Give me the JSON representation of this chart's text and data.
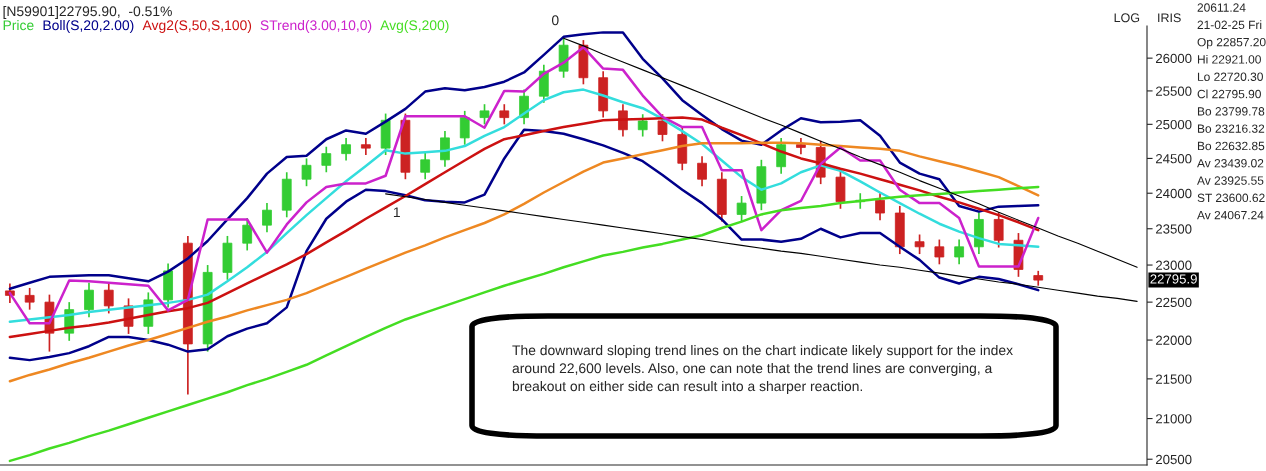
{
  "chart_data": {
    "type": "candlestick",
    "title": "[N59901]22795.90,  -0.51%",
    "log": "y",
    "grid": false,
    "tick_labels": "y",
    "categories": [
      null,
      null,
      null,
      null,
      null,
      null,
      null,
      null,
      null,
      null,
      null,
      null,
      null,
      null,
      null,
      null,
      null,
      null,
      null,
      null,
      null,
      null,
      null,
      null,
      null,
      null,
      null,
      null,
      null,
      null,
      null,
      null,
      null,
      null,
      null,
      null,
      null,
      null,
      null,
      null,
      null,
      null,
      null,
      null,
      null,
      null,
      null,
      null,
      null,
      null,
      null,
      null,
      null,
      null,
      null,
      null,
      null,
      null
    ],
    "ylim": [
      20430,
      26500
    ],
    "yticks": [
      20500,
      21000,
      21500,
      22000,
      22500,
      23000,
      23500,
      24000,
      24500,
      25000,
      25500,
      26000
    ],
    "series": [
      {
        "name": "Price",
        "color": "#33cc33",
        "ohlc": [
          [
            22650,
            22750,
            22490,
            22590
          ],
          [
            22590,
            22690,
            22400,
            22500
          ],
          [
            22500,
            22600,
            21850,
            22090
          ],
          [
            22090,
            22500,
            21990,
            22400
          ],
          [
            22400,
            22760,
            22300,
            22660
          ],
          [
            22660,
            22760,
            22350,
            22450
          ],
          [
            22450,
            22550,
            22080,
            22180
          ],
          [
            22180,
            22630,
            22080,
            22530
          ],
          [
            22530,
            23020,
            22430,
            22920
          ],
          [
            23300,
            23400,
            21300,
            21950
          ],
          [
            21950,
            23000,
            21850,
            22900
          ],
          [
            22900,
            23400,
            22800,
            23300
          ],
          [
            23300,
            23650,
            23200,
            23550
          ],
          [
            23550,
            23860,
            23450,
            23760
          ],
          [
            23760,
            24300,
            23660,
            24200
          ],
          [
            24200,
            24500,
            24100,
            24400
          ],
          [
            24400,
            24670,
            24300,
            24570
          ],
          [
            24570,
            24800,
            24470,
            24700
          ],
          [
            24700,
            24800,
            24550,
            24650
          ],
          [
            24650,
            25160,
            24550,
            25060
          ],
          [
            25060,
            25160,
            24200,
            24300
          ],
          [
            24300,
            24580,
            24200,
            24480
          ],
          [
            24480,
            24900,
            24380,
            24800
          ],
          [
            24800,
            25200,
            24700,
            25100
          ],
          [
            25100,
            25300,
            25000,
            25200
          ],
          [
            25200,
            25300,
            25000,
            25100
          ],
          [
            25100,
            25520,
            25000,
            25420
          ],
          [
            25420,
            25900,
            25320,
            25800
          ],
          [
            25800,
            26300,
            25700,
            26200
          ],
          [
            26200,
            26280,
            25600,
            25700
          ],
          [
            25700,
            25800,
            25100,
            25200
          ],
          [
            25200,
            25300,
            24820,
            24920
          ],
          [
            24920,
            25150,
            24820,
            25050
          ],
          [
            25050,
            25150,
            24750,
            24850
          ],
          [
            24850,
            24950,
            24330,
            24430
          ],
          [
            24430,
            24530,
            24100,
            24200
          ],
          [
            24200,
            24300,
            23600,
            23700
          ],
          [
            23700,
            23960,
            23600,
            23860
          ],
          [
            23860,
            24480,
            23760,
            24380
          ],
          [
            24380,
            24800,
            24280,
            24700
          ],
          [
            24700,
            24800,
            24560,
            24660
          ],
          [
            24660,
            24760,
            24130,
            24230
          ],
          [
            24230,
            24330,
            23780,
            23880
          ],
          [
            23880,
            24000,
            23780,
            23900
          ],
          [
            23900,
            24000,
            23620,
            23720
          ],
          [
            23720,
            23820,
            23150,
            23250
          ],
          [
            23320,
            23420,
            23150,
            23250
          ],
          [
            23250,
            23350,
            23010,
            23110
          ],
          [
            23110,
            23350,
            23010,
            23250
          ],
          [
            23250,
            23730,
            23150,
            23630
          ],
          [
            23630,
            23730,
            23240,
            23340
          ],
          [
            23340,
            23440,
            22840,
            22940
          ],
          [
            22857.2,
            22921,
            22720.3,
            22795.9
          ],
          null,
          null,
          null,
          null,
          null
        ],
        "colors": [
          "#cc2222",
          "#cc2222",
          "#cc2222",
          "#33cc33",
          "#33cc33",
          "#cc2222",
          "#cc2222",
          "#33cc33",
          "#33cc33",
          "#cc2222",
          "#33cc33",
          "#33cc33",
          "#33cc33",
          "#33cc33",
          "#33cc33",
          "#33cc33",
          "#33cc33",
          "#33cc33",
          "#cc2222",
          "#33cc33",
          "#cc2222",
          "#33cc33",
          "#33cc33",
          "#33cc33",
          "#33cc33",
          "#cc2222",
          "#33cc33",
          "#33cc33",
          "#33cc33",
          "#cc2222",
          "#cc2222",
          "#cc2222",
          "#33cc33",
          "#cc2222",
          "#cc2222",
          "#cc2222",
          "#cc2222",
          "#33cc33",
          "#33cc33",
          "#33cc33",
          "#cc2222",
          "#cc2222",
          "#cc2222",
          "#33cc33",
          "#cc2222",
          "#cc2222",
          "#cc2222",
          "#cc2222",
          "#33cc33",
          "#33cc33",
          "#cc2222",
          "#cc2222",
          "#cc2222",
          null,
          null,
          null,
          null,
          null
        ]
      },
      {
        "type": "line",
        "name": "Boll(S,20,2.00)",
        "color": "#00008b",
        "values": [
          22680,
          22760,
          22840,
          22850,
          22860,
          22860,
          22820,
          22780,
          22910,
          23090,
          23330,
          23630,
          23930,
          24280,
          24520,
          24540,
          24780,
          24910,
          24860,
          25040,
          25230,
          25490,
          25540,
          25510,
          25560,
          25640,
          25780,
          26050,
          26330,
          26370,
          26400,
          26400,
          25990,
          25690,
          25360,
          25140,
          24930,
          24760,
          24700,
          24910,
          25090,
          25030,
          25040,
          25060,
          24830,
          24440,
          24280,
          24200,
          23820,
          23740,
          23810,
          23820,
          23830,
          null,
          null,
          null,
          null,
          null
        ]
      },
      {
        "type": "line",
        "color": "#33dddd",
        "values": [
          22240,
          22270,
          22300,
          22330,
          22370,
          22400,
          22430,
          22460,
          22490,
          22530,
          22600,
          22780,
          22970,
          23180,
          23440,
          23690,
          23930,
          24170,
          24390,
          24620,
          24570,
          24590,
          24610,
          24680,
          24830,
          24960,
          25160,
          25360,
          25480,
          25520,
          25430,
          25330,
          25240,
          25080,
          24900,
          24710,
          24470,
          24230,
          24050,
          24140,
          24300,
          24400,
          24320,
          24170,
          24010,
          23860,
          23710,
          23570,
          23460,
          23370,
          23290,
          23270,
          23250,
          null,
          null,
          null,
          null,
          null
        ]
      },
      {
        "type": "line",
        "color": "#00008b",
        "values": [
          21770,
          21740,
          21780,
          21830,
          21920,
          22040,
          22040,
          22000,
          21940,
          21850,
          21880,
          22050,
          22150,
          22220,
          22430,
          23190,
          23640,
          23880,
          24050,
          24030,
          23970,
          23900,
          23880,
          23870,
          23980,
          24500,
          24920,
          24900,
          24860,
          24780,
          24690,
          24580,
          24460,
          24260,
          24050,
          23860,
          23630,
          23350,
          23350,
          23320,
          23360,
          23500,
          23380,
          23440,
          23440,
          23250,
          23070,
          22830,
          22750,
          22840,
          22810,
          22740,
          22660,
          null,
          null,
          null,
          null,
          null
        ]
      },
      {
        "type": "line",
        "name": "Avg2(S,50,S,100)",
        "color": "#cc1111",
        "values": [
          22040,
          22080,
          22120,
          22160,
          22190,
          22230,
          22280,
          22330,
          22380,
          22420,
          22490,
          22620,
          22750,
          22880,
          23010,
          23150,
          23310,
          23470,
          23640,
          23800,
          23960,
          24130,
          24300,
          24470,
          24640,
          24780,
          24840,
          24900,
          24960,
          25010,
          25060,
          25070,
          25080,
          25090,
          25100,
          25070,
          24950,
          24840,
          24720,
          24600,
          24500,
          24430,
          24350,
          24280,
          24200,
          24120,
          24040,
          23950,
          23870,
          23780,
          23690,
          23590,
          23480,
          null,
          null,
          null,
          null,
          null
        ]
      },
      {
        "type": "line",
        "color": "#ee8822",
        "values": [
          21470,
          21550,
          21620,
          21700,
          21770,
          21850,
          21930,
          22000,
          22080,
          22160,
          22240,
          22310,
          22390,
          22460,
          22530,
          22620,
          22730,
          22840,
          22950,
          23060,
          23170,
          23270,
          23380,
          23480,
          23580,
          23700,
          23850,
          24010,
          24160,
          24310,
          24440,
          24500,
          24560,
          24620,
          24680,
          24720,
          24720,
          24720,
          24730,
          24730,
          24720,
          24700,
          24680,
          24660,
          24640,
          24610,
          24530,
          24460,
          24390,
          24310,
          24230,
          24100,
          23970,
          null,
          null,
          null,
          null,
          null
        ]
      },
      {
        "type": "line",
        "name": "STrend(3.00,10,0)",
        "color": "#cc22cc",
        "values": [
          22620,
          22220,
          22220,
          22790,
          22780,
          22760,
          22740,
          22720,
          22390,
          22530,
          23630,
          23630,
          23630,
          23170,
          23560,
          23870,
          24090,
          24140,
          24140,
          24250,
          25120,
          25120,
          25120,
          25120,
          24950,
          25500,
          25490,
          25760,
          25930,
          26170,
          25840,
          25820,
          25430,
          25110,
          24960,
          24960,
          24330,
          24330,
          23480,
          23760,
          23890,
          24420,
          24660,
          24470,
          24470,
          24050,
          23860,
          23860,
          23650,
          22980,
          22980,
          22980,
          23650,
          null,
          null,
          null,
          null,
          null
        ]
      },
      {
        "type": "line",
        "name": "Avg(S,200)",
        "color": "#44dd22",
        "values": [
          20480,
          20550,
          20630,
          20700,
          20780,
          20850,
          20930,
          21010,
          21090,
          21170,
          21250,
          21330,
          21420,
          21500,
          21590,
          21680,
          21800,
          21920,
          22040,
          22160,
          22270,
          22360,
          22450,
          22540,
          22630,
          22720,
          22800,
          22880,
          22970,
          23050,
          23130,
          23180,
          23240,
          23290,
          23350,
          23410,
          23510,
          23600,
          23700,
          23760,
          23790,
          23820,
          23860,
          23890,
          23920,
          23950,
          23970,
          23990,
          24010,
          24030,
          24050,
          24070,
          24090,
          null,
          null,
          null,
          null,
          null
        ]
      },
      {
        "type": "line",
        "color": "#000000",
        "values": [
          null,
          null,
          null,
          null,
          null,
          null,
          null,
          null,
          null,
          null,
          null,
          null,
          null,
          null,
          null,
          null,
          null,
          null,
          null,
          null,
          null,
          null,
          null,
          null,
          null,
          null,
          null,
          null,
          26310,
          26190,
          26060,
          25940,
          25820,
          25700,
          25580,
          25460,
          25340,
          25220,
          25100,
          24990,
          24870,
          24750,
          24640,
          24520,
          24410,
          24300,
          24180,
          24070,
          23960,
          23850,
          23730,
          23620,
          23510,
          23400,
          23300,
          23190,
          23080,
          22970
        ]
      },
      {
        "type": "line",
        "color": "#000000",
        "values": [
          null,
          null,
          null,
          null,
          null,
          null,
          null,
          null,
          null,
          null,
          null,
          null,
          null,
          null,
          null,
          null,
          null,
          null,
          null,
          23990,
          23950,
          23910,
          23870,
          23830,
          23790,
          23750,
          23710,
          23670,
          23630,
          23590,
          23550,
          23510,
          23470,
          23430,
          23390,
          23350,
          23310,
          23270,
          23230,
          23190,
          23160,
          23120,
          23080,
          23040,
          23000,
          22970,
          22930,
          22890,
          22850,
          22810,
          22770,
          22740,
          22700,
          22660,
          22620,
          22580,
          22550,
          22510
        ]
      }
    ],
    "annotations": [
      "LOG",
      "IRIS",
      "20611.24",
      "21-02-25 Fri",
      "Op 22857.20",
      "Hi 22921.00",
      "Lo 22720.30",
      "Cl 22795.90",
      "Bo 23799.78",
      "Bo 23216.32",
      "Bo 22632.85",
      "Av 23439.02",
      "Av 23925.55",
      "ST 23600.62",
      "Av 24067.24",
      "22795.9",
      "0",
      "1",
      "The downward sloping trend lines on the chart indicate likely support for the index around 22,600 levels. Also, one can note that the trend lines are converging, a breakout on either side can result into a sharper reaction."
    ]
  }
}
